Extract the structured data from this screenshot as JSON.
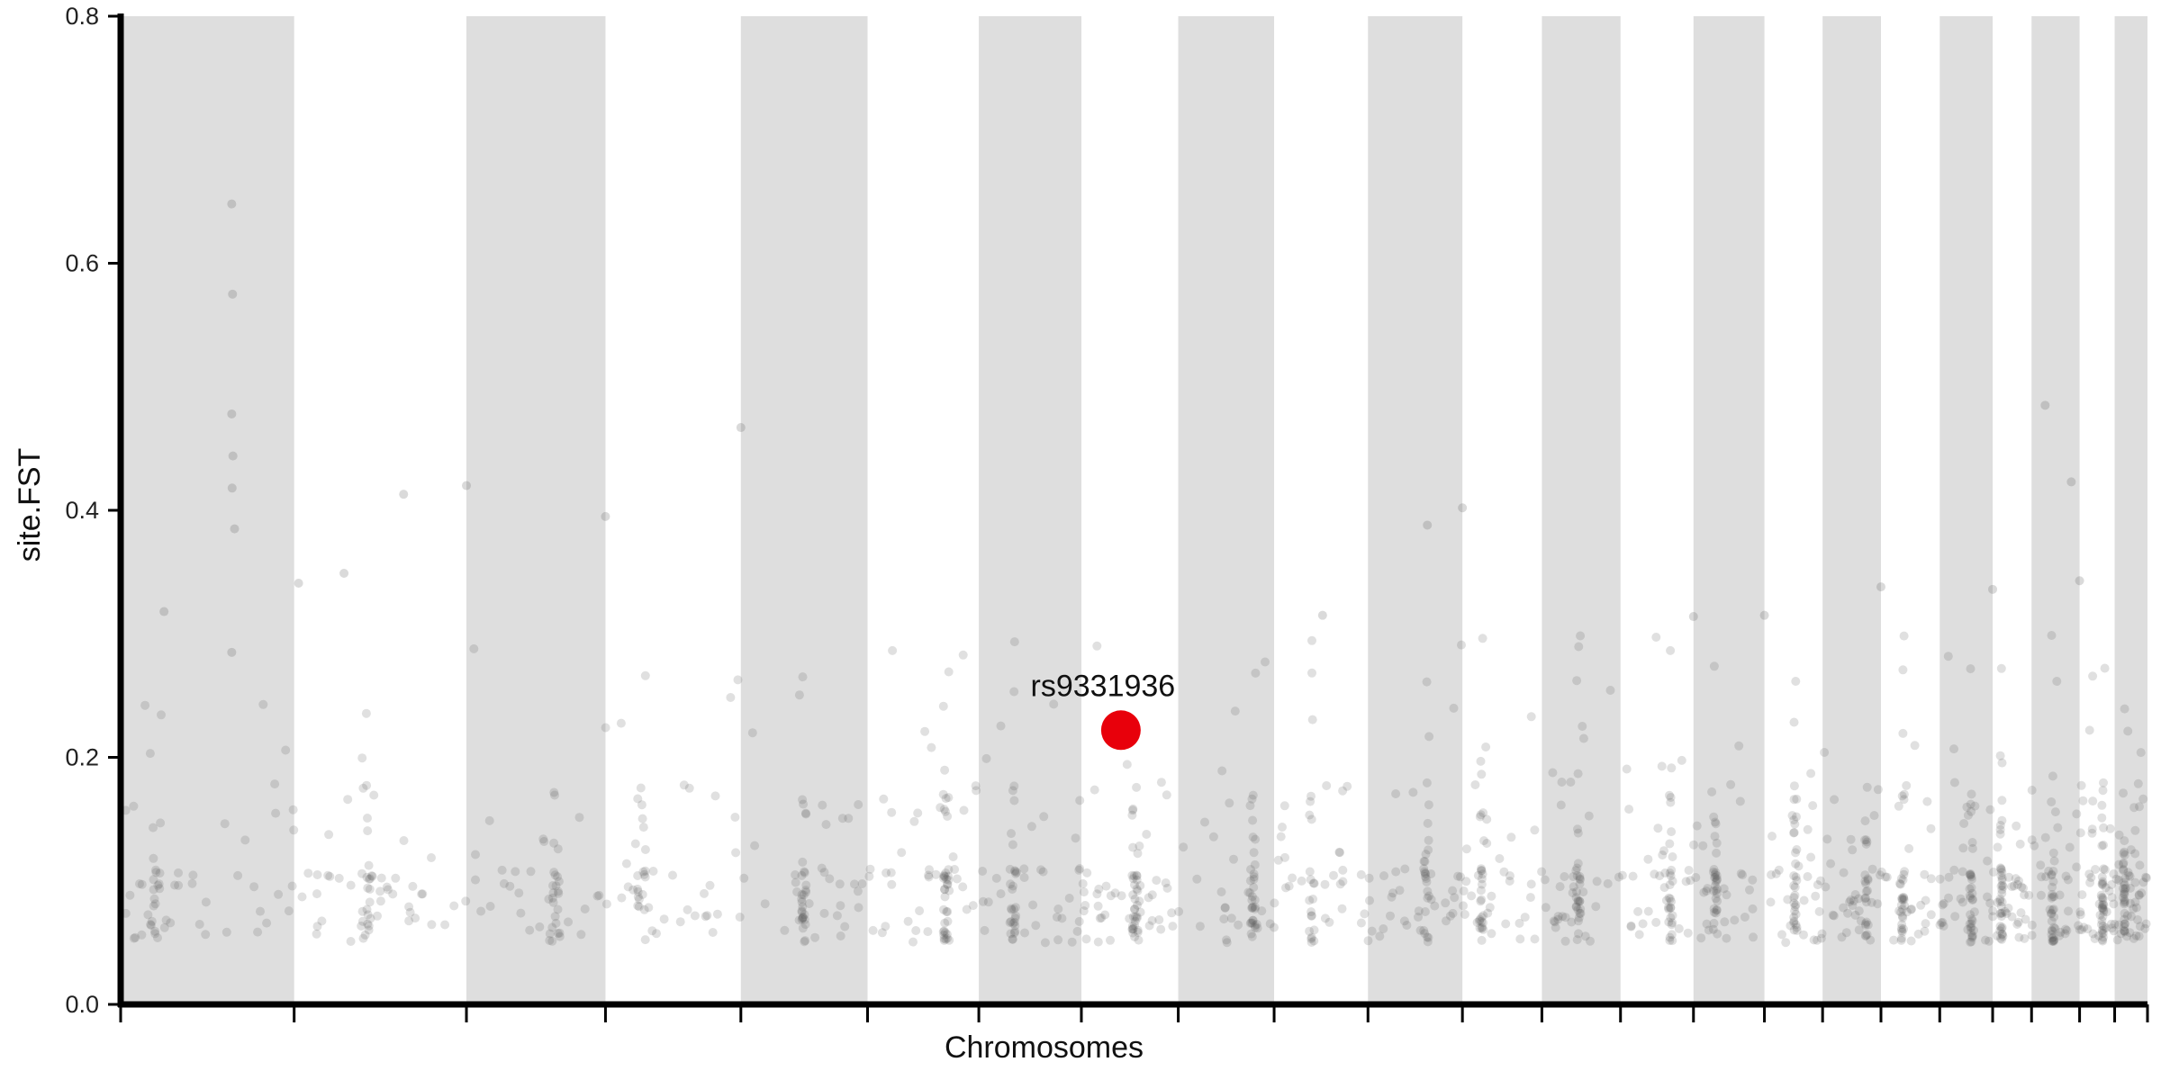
{
  "chart_data": {
    "type": "scatter",
    "title": "",
    "xlabel": "Chromosomes",
    "ylabel": "site.FST",
    "xlim": [
      0,
      1
    ],
    "ylim": [
      0,
      0.8
    ],
    "yticks": [
      0.0,
      0.2,
      0.4,
      0.6,
      0.8
    ],
    "ytick_labels": [
      "0.0",
      "0.2",
      "0.4",
      "0.6",
      "0.8"
    ],
    "grid": false,
    "chromosome_boundaries": [
      0,
      0.0856,
      0.1706,
      0.2392,
      0.306,
      0.3685,
      0.4234,
      0.474,
      0.5218,
      0.5691,
      0.6154,
      0.662,
      0.7012,
      0.74,
      0.776,
      0.811,
      0.8397,
      0.8685,
      0.8975,
      0.9236,
      0.9428,
      0.9665,
      0.9838,
      1.0
    ],
    "band_color": "#dedede",
    "point_color": "#555555",
    "highlight": {
      "label": "rs9331936",
      "x": 0.4935,
      "y": 0.222,
      "color": "#e8000b"
    },
    "notable_points": [
      {
        "x": 0.0548,
        "y": 0.648
      },
      {
        "x": 0.0548,
        "y": 0.478
      },
      {
        "x": 0.0554,
        "y": 0.444
      },
      {
        "x": 0.055,
        "y": 0.418
      },
      {
        "x": 0.0562,
        "y": 0.385
      },
      {
        "x": 0.0548,
        "y": 0.285
      },
      {
        "x": 0.0552,
        "y": 0.575
      },
      {
        "x": 0.306,
        "y": 0.467
      },
      {
        "x": 0.2392,
        "y": 0.395
      },
      {
        "x": 0.1706,
        "y": 0.42
      },
      {
        "x": 0.1396,
        "y": 0.413
      },
      {
        "x": 0.662,
        "y": 0.402
      },
      {
        "x": 0.6447,
        "y": 0.388
      },
      {
        "x": 0.8685,
        "y": 0.338
      },
      {
        "x": 0.9236,
        "y": 0.336
      },
      {
        "x": 0.9495,
        "y": 0.485
      },
      {
        "x": 0.9624,
        "y": 0.423
      },
      {
        "x": 0.9665,
        "y": 0.343
      },
      {
        "x": 0.0878,
        "y": 0.341
      },
      {
        "x": 0.1102,
        "y": 0.349
      },
      {
        "x": 0.0214,
        "y": 0.318
      },
      {
        "x": 0.593,
        "y": 0.315
      },
      {
        "x": 0.776,
        "y": 0.314
      },
      {
        "x": 0.811,
        "y": 0.315
      }
    ],
    "generated_background_points": 1400
  }
}
